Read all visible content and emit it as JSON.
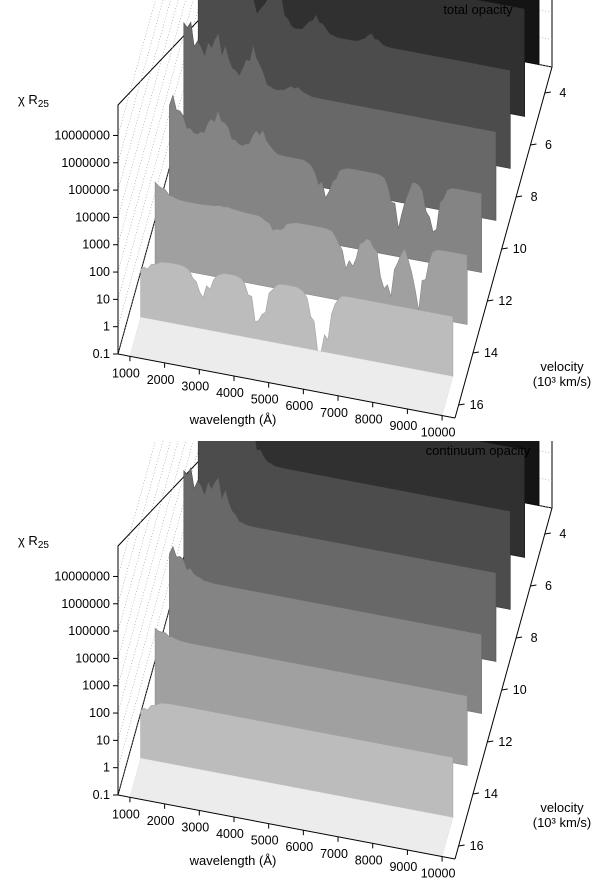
{
  "chart_data": [
    {
      "type": "surface3d",
      "title": "total opacity",
      "xlabel": "wavelength (Å)",
      "ylabel_line1": "velocity",
      "ylabel_line2": "(10³ km/s)",
      "zlabel_main": "χ R",
      "zlabel_sub": "25",
      "x_ticks": [
        "1000",
        "2000",
        "3000",
        "4000",
        "5000",
        "6000",
        "7000",
        "8000",
        "9000",
        "10000"
      ],
      "y_ticks": [
        "4",
        "6",
        "8",
        "10",
        "12",
        "14",
        "16"
      ],
      "z_ticks": [
        "0.1",
        "1",
        "10",
        "100",
        "1000",
        "10000",
        "100000",
        "1000000",
        "10000000"
      ],
      "xlim": [
        1000,
        10000
      ],
      "ylim": [
        4,
        16
      ],
      "zscale": "log",
      "grid": true,
      "colormap": "grayscale (dark = high opacity)",
      "baseline_log_opacity": 3.3,
      "rows": [
        {
          "velocity": 3,
          "peaks": [
            [
              1000,
              7.2,
              700
            ],
            [
              1700,
              6.5,
              400
            ],
            [
              2800,
              7.3,
              500
            ],
            [
              3300,
              6,
              300
            ],
            [
              4200,
              4.5,
              300
            ],
            [
              5000,
              4,
              250
            ],
            [
              6000,
              3.9,
              250
            ]
          ]
        },
        {
          "velocity": 5,
          "peaks": [
            [
              1000,
              6.8,
              600
            ],
            [
              2600,
              6.6,
              400
            ],
            [
              3500,
              5.5,
              300
            ],
            [
              4600,
              4.2,
              300
            ],
            [
              5600,
              3.8,
              250
            ]
          ]
        },
        {
          "velocity": 7,
          "peaks": [
            [
              1000,
              6.2,
              500
            ],
            [
              2200,
              5.5,
              400
            ],
            [
              3200,
              5.2,
              300
            ],
            [
              4400,
              4,
              300
            ],
            [
              6000,
              3.7,
              250
            ]
          ]
        },
        {
          "velocity": 9,
          "peaks": [
            [
              1000,
              5.5,
              500
            ],
            [
              2000,
              5,
              400
            ],
            [
              3000,
              4.8,
              300
            ],
            [
              4200,
              3.6,
              300
            ]
          ]
        },
        {
          "velocity": 11,
          "peaks": [
            [
              1000,
              4.8,
              500
            ],
            [
              2400,
              4.5,
              400
            ],
            [
              3600,
              4.2,
              300
            ],
            [
              5500,
              2,
              300
            ],
            [
              7600,
              1.4,
              250
            ],
            [
              8600,
              1.3,
              250
            ]
          ]
        },
        {
          "velocity": 13,
          "peaks": [
            [
              1000,
              3.8,
              400
            ],
            [
              3000,
              3.4,
              400
            ],
            [
              4500,
              2.8,
              300
            ],
            [
              6600,
              1.8,
              300
            ],
            [
              7700,
              1,
              300
            ],
            [
              8600,
              0.9,
              250
            ]
          ]
        },
        {
          "velocity": 15,
          "peaks": [
            [
              1000,
              2.8,
              400
            ],
            [
              2800,
              2.2,
              300
            ],
            [
              4400,
              1.5,
              300
            ],
            [
              6200,
              0.6,
              300
            ]
          ]
        }
      ]
    },
    {
      "type": "surface3d",
      "title": "continuum opacity",
      "xlabel": "wavelength (Å)",
      "ylabel_line1": "velocity",
      "ylabel_line2": "(10³ km/s)",
      "zlabel_main": "χ R",
      "zlabel_sub": "25",
      "x_ticks": [
        "1000",
        "2000",
        "3000",
        "4000",
        "5000",
        "6000",
        "7000",
        "8000",
        "9000",
        "10000"
      ],
      "y_ticks": [
        "4",
        "6",
        "8",
        "10",
        "12",
        "14",
        "16"
      ],
      "z_ticks": [
        "0.1",
        "1",
        "10",
        "100",
        "1000",
        "10000",
        "100000",
        "1000000",
        "10000000"
      ],
      "xlim": [
        1000,
        10000
      ],
      "ylim": [
        4,
        16
      ],
      "zscale": "log",
      "grid": true,
      "colormap": "grayscale (dark = high opacity)",
      "baseline_log_opacity": 3.3,
      "rows": [
        {
          "velocity": 3,
          "peaks": [
            [
              1000,
              6.6,
              800
            ],
            [
              1700,
              6.9,
              500
            ],
            [
              2600,
              7.0,
              500
            ]
          ]
        },
        {
          "velocity": 5,
          "peaks": [
            [
              1000,
              6.3,
              700
            ],
            [
              2200,
              6.4,
              500
            ]
          ]
        },
        {
          "velocity": 7,
          "peaks": [
            [
              1000,
              5.9,
              700
            ],
            [
              2200,
              5.6,
              500
            ]
          ]
        },
        {
          "velocity": 9,
          "peaks": [
            [
              1000,
              5.2,
              600
            ],
            [
              2000,
              4.8,
              400
            ]
          ]
        },
        {
          "velocity": 11,
          "peaks": [
            [
              1000,
              4.4,
              600
            ]
          ]
        },
        {
          "velocity": 13,
          "peaks": [
            [
              1000,
              3.6,
              500
            ]
          ]
        },
        {
          "velocity": 15,
          "peaks": [
            [
              1000,
              2.8,
              400
            ]
          ]
        }
      ]
    }
  ]
}
